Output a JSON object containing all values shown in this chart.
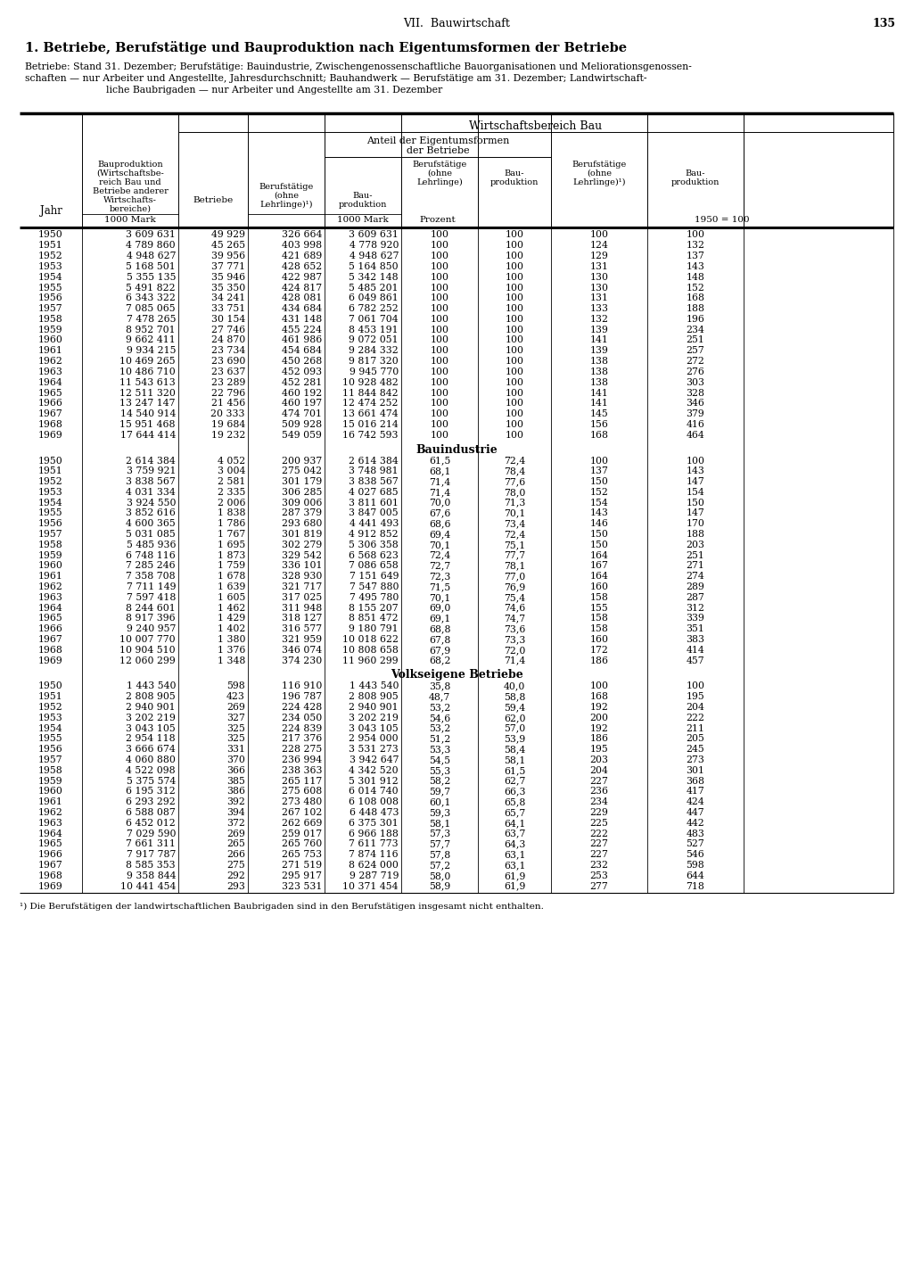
{
  "page_header": "VII.  Bauwirtschaft",
  "page_number": "135",
  "title": "1. Betriebe, Berufstätige und Bauproduktion nach Eigentumsformen der Betriebe",
  "subtitle_lines": [
    "Betriebe: Stand 31. Dezember; Berufstätige: Bauindustrie, Zwischengenossenschaftliche Bauorganisationen und Meliorationsgenossen-",
    "schaften — nur Arbeiter und Angestellte, Jahresdurchschnitt; Bauhandwerk — Berufstätige am 31. Dezember; Landwirtschaft-",
    "                          liche Baubrigaden — nur Arbeiter und Angestellte am 31. Dezember"
  ],
  "footnote": "¹) Die Berufstätigen der landwirtschaftlichen Baubrigaden sind in den Berufstätigen insgesamt nicht enthalten.",
  "sections": [
    {
      "name": "",
      "rows": [
        [
          "1950",
          "3 609 631",
          "49 929",
          "326 664",
          "3 609 631",
          "100",
          "100",
          "100",
          "100"
        ],
        [
          "1951",
          "4 789 860",
          "45 265",
          "403 998",
          "4 778 920",
          "100",
          "100",
          "124",
          "132"
        ],
        [
          "1952",
          "4 948 627",
          "39 956",
          "421 689",
          "4 948 627",
          "100",
          "100",
          "129",
          "137"
        ],
        [
          "1953",
          "5 168 501",
          "37 771",
          "428 652",
          "5 164 850",
          "100",
          "100",
          "131",
          "143"
        ],
        [
          "1954",
          "5 355 135",
          "35 946",
          "422 987",
          "5 342 148",
          "100",
          "100",
          "130",
          "148"
        ],
        [
          "1955",
          "5 491 822",
          "35 350",
          "424 817",
          "5 485 201",
          "100",
          "100",
          "130",
          "152"
        ],
        [
          "1956",
          "6 343 322",
          "34 241",
          "428 081",
          "6 049 861",
          "100",
          "100",
          "131",
          "168"
        ],
        [
          "1957",
          "7 085 065",
          "33 751",
          "434 684",
          "6 782 252",
          "100",
          "100",
          "133",
          "188"
        ],
        [
          "1958",
          "7 478 265",
          "30 154",
          "431 148",
          "7 061 704",
          "100",
          "100",
          "132",
          "196"
        ],
        [
          "1959",
          "8 952 701",
          "27 746",
          "455 224",
          "8 453 191",
          "100",
          "100",
          "139",
          "234"
        ],
        [
          "1960",
          "9 662 411",
          "24 870",
          "461 986",
          "9 072 051",
          "100",
          "100",
          "141",
          "251"
        ],
        [
          "1961",
          "9 934 215",
          "23 734",
          "454 684",
          "9 284 332",
          "100",
          "100",
          "139",
          "257"
        ],
        [
          "1962",
          "10 469 265",
          "23 690",
          "450 268",
          "9 817 320",
          "100",
          "100",
          "138",
          "272"
        ],
        [
          "1963",
          "10 486 710",
          "23 637",
          "452 093",
          "9 945 770",
          "100",
          "100",
          "138",
          "276"
        ],
        [
          "1964",
          "11 543 613",
          "23 289",
          "452 281",
          "10 928 482",
          "100",
          "100",
          "138",
          "303"
        ],
        [
          "1965",
          "12 511 320",
          "22 796",
          "460 192",
          "11 844 842",
          "100",
          "100",
          "141",
          "328"
        ],
        [
          "1966",
          "13 247 147",
          "21 456",
          "460 197",
          "12 474 252",
          "100",
          "100",
          "141",
          "346"
        ],
        [
          "1967",
          "14 540 914",
          "20 333",
          "474 701",
          "13 661 474",
          "100",
          "100",
          "145",
          "379"
        ],
        [
          "1968",
          "15 951 468",
          "19 684",
          "509 928",
          "15 016 214",
          "100",
          "100",
          "156",
          "416"
        ],
        [
          "1969",
          "17 644 414",
          "19 232",
          "549 059",
          "16 742 593",
          "100",
          "100",
          "168",
          "464"
        ]
      ]
    },
    {
      "name": "Bauindustrie",
      "rows": [
        [
          "1950",
          "2 614 384",
          "4 052",
          "200 937",
          "2 614 384",
          "61,5",
          "72,4",
          "100",
          "100"
        ],
        [
          "1951",
          "3 759 921",
          "3 004",
          "275 042",
          "3 748 981",
          "68,1",
          "78,4",
          "137",
          "143"
        ],
        [
          "1952",
          "3 838 567",
          "2 581",
          "301 179",
          "3 838 567",
          "71,4",
          "77,6",
          "150",
          "147"
        ],
        [
          "1953",
          "4 031 334",
          "2 335",
          "306 285",
          "4 027 685",
          "71,4",
          "78,0",
          "152",
          "154"
        ],
        [
          "1954",
          "3 924 550",
          "2 006",
          "309 006",
          "3 811 601",
          "70,0",
          "71,3",
          "154",
          "150"
        ],
        [
          "1955",
          "3 852 616",
          "1 838",
          "287 379",
          "3 847 005",
          "67,6",
          "70,1",
          "143",
          "147"
        ],
        [
          "1956",
          "4 600 365",
          "1 786",
          "293 680",
          "4 441 493",
          "68,6",
          "73,4",
          "146",
          "170"
        ],
        [
          "1957",
          "5 031 085",
          "1 767",
          "301 819",
          "4 912 852",
          "69,4",
          "72,4",
          "150",
          "188"
        ],
        [
          "1958",
          "5 485 936",
          "1 695",
          "302 279",
          "5 306 358",
          "70,1",
          "75,1",
          "150",
          "203"
        ],
        [
          "1959",
          "6 748 116",
          "1 873",
          "329 542",
          "6 568 623",
          "72,4",
          "77,7",
          "164",
          "251"
        ],
        [
          "1960",
          "7 285 246",
          "1 759",
          "336 101",
          "7 086 658",
          "72,7",
          "78,1",
          "167",
          "271"
        ],
        [
          "1961",
          "7 358 708",
          "1 678",
          "328 930",
          "7 151 649",
          "72,3",
          "77,0",
          "164",
          "274"
        ],
        [
          "1962",
          "7 711 149",
          "1 639",
          "321 717",
          "7 547 880",
          "71,5",
          "76,9",
          "160",
          "289"
        ],
        [
          "1963",
          "7 597 418",
          "1 605",
          "317 025",
          "7 495 780",
          "70,1",
          "75,4",
          "158",
          "287"
        ],
        [
          "1964",
          "8 244 601",
          "1 462",
          "311 948",
          "8 155 207",
          "69,0",
          "74,6",
          "155",
          "312"
        ],
        [
          "1965",
          "8 917 396",
          "1 429",
          "318 127",
          "8 851 472",
          "69,1",
          "74,7",
          "158",
          "339"
        ],
        [
          "1966",
          "9 240 957",
          "1 402",
          "316 577",
          "9 180 791",
          "68,8",
          "73,6",
          "158",
          "351"
        ],
        [
          "1967",
          "10 007 770",
          "1 380",
          "321 959",
          "10 018 622",
          "67,8",
          "73,3",
          "160",
          "383"
        ],
        [
          "1968",
          "10 904 510",
          "1 376",
          "346 074",
          "10 808 658",
          "67,9",
          "72,0",
          "172",
          "414"
        ],
        [
          "1969",
          "12 060 299",
          "1 348",
          "374 230",
          "11 960 299",
          "68,2",
          "71,4",
          "186",
          "457"
        ]
      ]
    },
    {
      "name": "Volkseigene Betriebe",
      "rows": [
        [
          "1950",
          "1 443 540",
          "598",
          "116 910",
          "1 443 540",
          "35,8",
          "40,0",
          "100",
          "100"
        ],
        [
          "1951",
          "2 808 905",
          "423",
          "196 787",
          "2 808 905",
          "48,7",
          "58,8",
          "168",
          "195"
        ],
        [
          "1952",
          "2 940 901",
          "269",
          "224 428",
          "2 940 901",
          "53,2",
          "59,4",
          "192",
          "204"
        ],
        [
          "1953",
          "3 202 219",
          "327",
          "234 050",
          "3 202 219",
          "54,6",
          "62,0",
          "200",
          "222"
        ],
        [
          "1954",
          "3 043 105",
          "325",
          "224 839",
          "3 043 105",
          "53,2",
          "57,0",
          "192",
          "211"
        ],
        [
          "1955",
          "2 954 118",
          "325",
          "217 376",
          "2 954 000",
          "51,2",
          "53,9",
          "186",
          "205"
        ],
        [
          "1956",
          "3 666 674",
          "331",
          "228 275",
          "3 531 273",
          "53,3",
          "58,4",
          "195",
          "245"
        ],
        [
          "1957",
          "4 060 880",
          "370",
          "236 994",
          "3 942 647",
          "54,5",
          "58,1",
          "203",
          "273"
        ],
        [
          "1958",
          "4 522 098",
          "366",
          "238 363",
          "4 342 520",
          "55,3",
          "61,5",
          "204",
          "301"
        ],
        [
          "1959",
          "5 375 574",
          "385",
          "265 117",
          "5 301 912",
          "58,2",
          "62,7",
          "227",
          "368"
        ],
        [
          "1960",
          "6 195 312",
          "386",
          "275 608",
          "6 014 740",
          "59,7",
          "66,3",
          "236",
          "417"
        ],
        [
          "1961",
          "6 293 292",
          "392",
          "273 480",
          "6 108 008",
          "60,1",
          "65,8",
          "234",
          "424"
        ],
        [
          "1962",
          "6 588 087",
          "394",
          "267 102",
          "6 448 473",
          "59,3",
          "65,7",
          "229",
          "447"
        ],
        [
          "1963",
          "6 452 012",
          "372",
          "262 669",
          "6 375 301",
          "58,1",
          "64,1",
          "225",
          "442"
        ],
        [
          "1964",
          "7 029 590",
          "269",
          "259 017",
          "6 966 188",
          "57,3",
          "63,7",
          "222",
          "483"
        ],
        [
          "1965",
          "7 661 311",
          "265",
          "265 760",
          "7 611 773",
          "57,7",
          "64,3",
          "227",
          "527"
        ],
        [
          "1966",
          "7 917 787",
          "266",
          "265 753",
          "7 874 116",
          "57,8",
          "63,1",
          "227",
          "546"
        ],
        [
          "1967",
          "8 585 353",
          "275",
          "271 519",
          "8 624 000",
          "57,2",
          "63,1",
          "232",
          "598"
        ],
        [
          "1968",
          "9 358 844",
          "292",
          "295 917",
          "9 287 719",
          "58,0",
          "61,9",
          "253",
          "644"
        ],
        [
          "1969",
          "10 441 454",
          "293",
          "323 531",
          "10 371 454",
          "58,9",
          "61,9",
          "277",
          "718"
        ]
      ]
    }
  ]
}
